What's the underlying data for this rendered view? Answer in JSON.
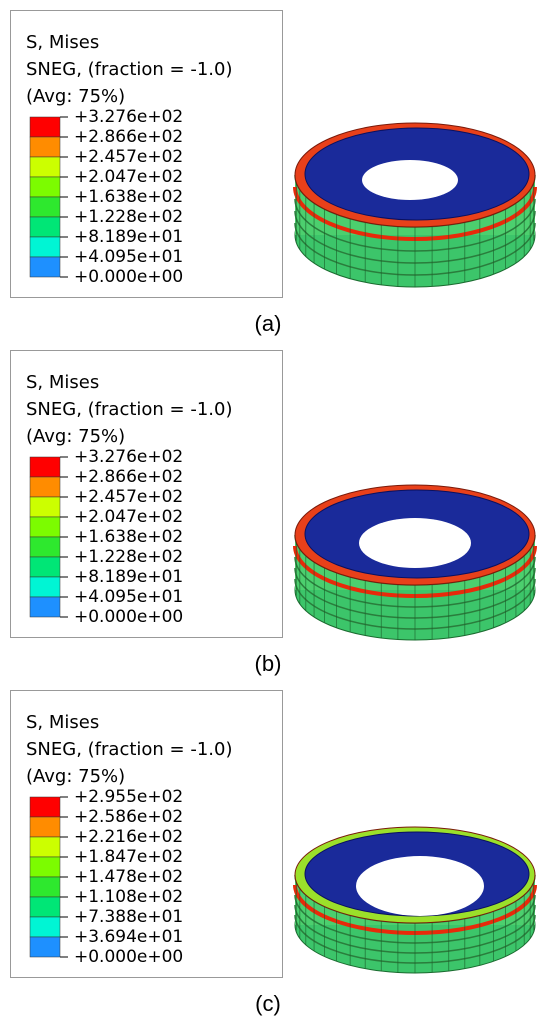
{
  "colors": [
    "#ff0000",
    "#ff8c00",
    "#ccff00",
    "#7cfc00",
    "#2ee82e",
    "#00e676",
    "#00f5d4",
    "#1e90ff",
    "#0000ff"
  ],
  "panels": [
    {
      "title": [
        "S, Mises",
        "SNEG, (fraction = -1.0)",
        "(Avg: 75%)"
      ],
      "labels": [
        "+3.276e+02",
        "+2.866e+02",
        "+2.457e+02",
        "+2.047e+02",
        "+1.638e+02",
        "+1.228e+02",
        "+8.189e+01",
        "+4.095e+01",
        "+0.000e+00"
      ],
      "caption": "(a)"
    },
    {
      "title": [
        "S, Mises",
        "SNEG, (fraction = -1.0)",
        "(Avg: 75%)"
      ],
      "labels": [
        "+3.276e+02",
        "+2.866e+02",
        "+2.457e+02",
        "+2.047e+02",
        "+1.638e+02",
        "+1.228e+02",
        "+8.189e+01",
        "+4.095e+01",
        "+0.000e+00"
      ],
      "caption": "(b)"
    },
    {
      "title": [
        "S, Mises",
        "SNEG, (fraction = -1.0)",
        "(Avg: 75%)"
      ],
      "labels": [
        "+2.955e+02",
        "+2.586e+02",
        "+2.216e+02",
        "+1.847e+02",
        "+1.478e+02",
        "+1.108e+02",
        "+7.388e+01",
        "+3.694e+01",
        "+0.000e+00"
      ],
      "caption": "(c)"
    }
  ]
}
